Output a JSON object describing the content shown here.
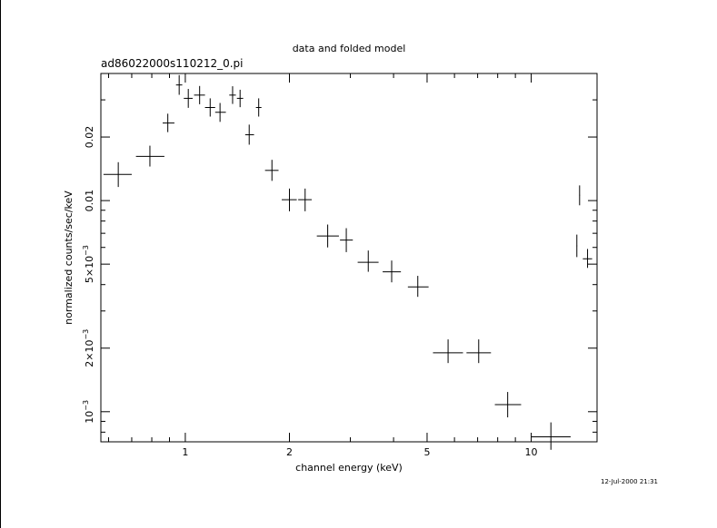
{
  "chart_data": {
    "type": "scatter",
    "title": "data and folded model",
    "subtitle": "ad86022000s110212_0.pi",
    "xlabel": "channel energy (keV)",
    "ylabel": "normalized counts/sec/keV",
    "xscale": "log",
    "yscale": "log",
    "xlim": [
      0.57,
      15.5
    ],
    "ylim": [
      0.00072,
      0.04
    ],
    "x_ticks": [
      {
        "value": 1,
        "label": "1"
      },
      {
        "value": 2,
        "label": "2"
      },
      {
        "value": 5,
        "label": "5"
      },
      {
        "value": 10,
        "label": "10"
      }
    ],
    "y_ticks": [
      {
        "value": 0.001,
        "base": "10",
        "exp": "−3"
      },
      {
        "value": 0.002,
        "base": "2×10",
        "exp": "−3"
      },
      {
        "value": 0.005,
        "base": "5×10",
        "exp": "−3"
      },
      {
        "value": 0.01,
        "base": "0.01",
        "exp": ""
      },
      {
        "value": 0.02,
        "base": "0.02",
        "exp": ""
      }
    ],
    "grid": false,
    "points": [
      {
        "x": 0.64,
        "y": 0.0133,
        "xerr": [
          0.58,
          0.7
        ],
        "yerr": [
          0.0116,
          0.0152
        ]
      },
      {
        "x": 0.79,
        "y": 0.0162,
        "xerr": [
          0.72,
          0.87
        ],
        "yerr": [
          0.0145,
          0.0182
        ]
      },
      {
        "x": 0.89,
        "y": 0.0233,
        "xerr": [
          0.86,
          0.93
        ],
        "yerr": [
          0.0211,
          0.0258
        ]
      },
      {
        "x": 0.96,
        "y": 0.0353,
        "xerr": [
          0.94,
          0.98
        ],
        "yerr": [
          0.0317,
          0.0393
        ]
      },
      {
        "x": 1.02,
        "y": 0.0305,
        "xerr": [
          0.99,
          1.05
        ],
        "yerr": [
          0.0275,
          0.0338
        ]
      },
      {
        "x": 1.1,
        "y": 0.0316,
        "xerr": [
          1.06,
          1.14
        ],
        "yerr": [
          0.0286,
          0.0349
        ]
      },
      {
        "x": 1.18,
        "y": 0.0276,
        "xerr": [
          1.14,
          1.22
        ],
        "yerr": [
          0.025,
          0.0305
        ]
      },
      {
        "x": 1.26,
        "y": 0.0262,
        "xerr": [
          1.22,
          1.31
        ],
        "yerr": [
          0.0236,
          0.029
        ]
      },
      {
        "x": 1.37,
        "y": 0.0316,
        "xerr": [
          1.34,
          1.4
        ],
        "yerr": [
          0.0287,
          0.0348
        ]
      },
      {
        "x": 1.44,
        "y": 0.0305,
        "xerr": [
          1.41,
          1.47
        ],
        "yerr": [
          0.0277,
          0.0335
        ]
      },
      {
        "x": 1.53,
        "y": 0.0205,
        "xerr": [
          1.49,
          1.58
        ],
        "yerr": [
          0.0184,
          0.0229
        ]
      },
      {
        "x": 1.63,
        "y": 0.0276,
        "xerr": [
          1.6,
          1.66
        ],
        "yerr": [
          0.025,
          0.0305
        ]
      },
      {
        "x": 1.78,
        "y": 0.0139,
        "xerr": [
          1.7,
          1.86
        ],
        "yerr": [
          0.0124,
          0.0156
        ]
      },
      {
        "x": 2.0,
        "y": 0.0101,
        "xerr": [
          1.9,
          2.1
        ],
        "yerr": [
          0.0089,
          0.0114
        ]
      },
      {
        "x": 2.22,
        "y": 0.0101,
        "xerr": [
          2.12,
          2.32
        ],
        "yerr": [
          0.0089,
          0.0114
        ]
      },
      {
        "x": 2.58,
        "y": 0.0068,
        "xerr": [
          2.4,
          2.78
        ],
        "yerr": [
          0.006,
          0.0077
        ]
      },
      {
        "x": 2.92,
        "y": 0.0065,
        "xerr": [
          2.8,
          3.05
        ],
        "yerr": [
          0.0057,
          0.0074
        ]
      },
      {
        "x": 3.38,
        "y": 0.0051,
        "xerr": [
          3.15,
          3.62
        ],
        "yerr": [
          0.0046,
          0.0058
        ]
      },
      {
        "x": 3.95,
        "y": 0.0046,
        "xerr": [
          3.72,
          4.2
        ],
        "yerr": [
          0.0041,
          0.0052
        ]
      },
      {
        "x": 4.7,
        "y": 0.0039,
        "xerr": [
          4.4,
          5.05
        ],
        "yerr": [
          0.0035,
          0.0044
        ]
      },
      {
        "x": 5.75,
        "y": 0.0019,
        "xerr": [
          5.2,
          6.35
        ],
        "yerr": [
          0.0017,
          0.0022
        ]
      },
      {
        "x": 7.05,
        "y": 0.0019,
        "xerr": [
          6.5,
          7.65
        ],
        "yerr": [
          0.0017,
          0.0022
        ]
      },
      {
        "x": 8.55,
        "y": 0.00108,
        "xerr": [
          7.85,
          9.35
        ],
        "yerr": [
          0.00094,
          0.00124
        ]
      },
      {
        "x": 11.4,
        "y": 0.00076,
        "xerr": [
          10.0,
          13.0
        ],
        "yerr": [
          0.00066,
          0.00089
        ]
      },
      {
        "x": 13.55,
        "y": 0.0061,
        "xerr": [
          13.52,
          13.58
        ],
        "yerr": [
          0.0054,
          0.0069
        ]
      },
      {
        "x": 13.8,
        "y": 0.0106,
        "xerr": [
          13.77,
          13.83
        ],
        "yerr": [
          0.0095,
          0.0118
        ]
      },
      {
        "x": 14.55,
        "y": 0.0053,
        "xerr": [
          14.1,
          15.0
        ],
        "yerr": [
          0.0048,
          0.0059
        ]
      }
    ]
  },
  "footer": {
    "timestamp": "12-Jul-2000 21:31"
  }
}
